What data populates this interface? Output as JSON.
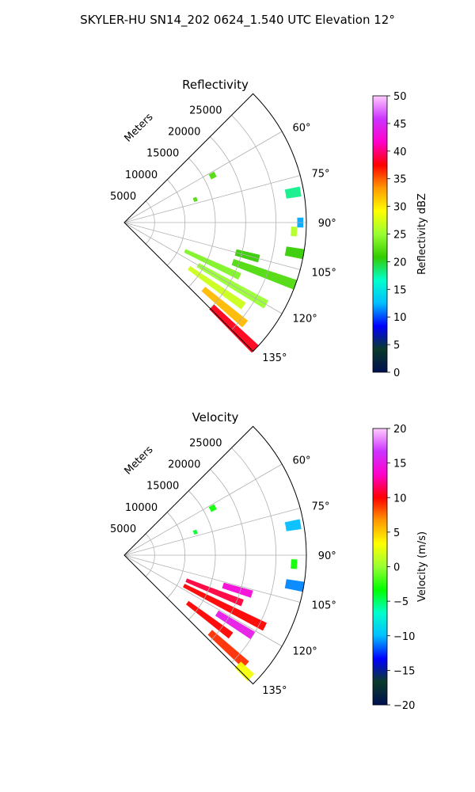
{
  "figure": {
    "title": "SKYLER-HU  SN14_202  0624_1.540 UTC Elevation 12°"
  },
  "chart_data": [
    {
      "type": "polar-sector",
      "title": "Reflectivity",
      "radial_label": "Meters",
      "r_ticks": [
        "5000",
        "10000",
        "15000",
        "20000",
        "25000"
      ],
      "theta_ticks": [
        "60°",
        "75°",
        "90°",
        "105°",
        "120°",
        "135°"
      ],
      "theta_range_deg": [
        45,
        135
      ],
      "r_range_m": [
        0,
        30000
      ],
      "grid": true,
      "colorbar": {
        "label": "Reflectivity dBZ",
        "min": 0,
        "max": 50,
        "ticks": [
          "0",
          "5",
          "10",
          "15",
          "20",
          "25",
          "30",
          "35",
          "40",
          "45",
          "50"
        ],
        "stops": [
          "#001050",
          "#0a3a2a",
          "#0000ff",
          "#00bfff",
          "#00ffcc",
          "#33cc00",
          "#99ff33",
          "#ffff00",
          "#ff9900",
          "#ff0000",
          "#ff00cc",
          "#cc33ff",
          "#ffccff"
        ]
      },
      "echoes": [
        {
          "az": 62,
          "r0": 16000,
          "r1": 17000,
          "value": 22
        },
        {
          "az": 72,
          "r0": 12000,
          "r1": 12600,
          "value": 22
        },
        {
          "az": 80,
          "r0": 27000,
          "r1": 29500,
          "value": 18
        },
        {
          "az": 90,
          "r0": 28500,
          "r1": 29500,
          "value": 12
        },
        {
          "az": 93,
          "r0": 27500,
          "r1": 28500,
          "value": 26
        },
        {
          "az": 100,
          "r0": 27000,
          "r1": 30000,
          "value": 21
        },
        {
          "az": 105,
          "r0": 19000,
          "r1": 23000,
          "value": 21
        },
        {
          "az": 110,
          "r0": 19000,
          "r1": 30000,
          "value": 22
        },
        {
          "az": 115,
          "r0": 11000,
          "r1": 21000,
          "value": 24
        },
        {
          "az": 120,
          "r0": 14000,
          "r1": 27000,
          "value": 25
        },
        {
          "az": 125,
          "r0": 13000,
          "r1": 24000,
          "value": 27
        },
        {
          "az": 130,
          "r0": 17000,
          "r1": 26000,
          "value": 32
        },
        {
          "az": 134,
          "r0": 20000,
          "r1": 30000,
          "value": 38
        }
      ]
    },
    {
      "type": "polar-sector",
      "title": "Velocity",
      "radial_label": "Meters",
      "r_ticks": [
        "5000",
        "10000",
        "15000",
        "20000",
        "25000"
      ],
      "theta_ticks": [
        "60°",
        "75°",
        "90°",
        "105°",
        "120°",
        "135°"
      ],
      "theta_range_deg": [
        45,
        135
      ],
      "r_range_m": [
        0,
        30000
      ],
      "grid": true,
      "colorbar": {
        "label": "Velocity (m/s)",
        "min": -20,
        "max": 20,
        "ticks": [
          "−20",
          "−15",
          "−10",
          "−5",
          "0",
          "5",
          "10",
          "15",
          "20"
        ],
        "stops": [
          "#001050",
          "#0a3a2a",
          "#0000ff",
          "#00bfff",
          "#00ffcc",
          "#00ff00",
          "#99ff33",
          "#ffff00",
          "#ff9900",
          "#ff0000",
          "#ff00cc",
          "#cc33ff",
          "#ffccff"
        ]
      },
      "echoes": [
        {
          "az": 62,
          "r0": 16000,
          "r1": 17000,
          "value": -3
        },
        {
          "az": 72,
          "r0": 12000,
          "r1": 12600,
          "value": -4
        },
        {
          "az": 80,
          "r0": 27000,
          "r1": 29500,
          "value": -10
        },
        {
          "az": 93,
          "r0": 27500,
          "r1": 28500,
          "value": -3
        },
        {
          "az": 100,
          "r0": 27000,
          "r1": 30000,
          "value": -11
        },
        {
          "az": 107,
          "r0": 17000,
          "r1": 22000,
          "value": 14
        },
        {
          "az": 112,
          "r0": 11000,
          "r1": 21000,
          "value": 11
        },
        {
          "az": 117,
          "r0": 11000,
          "r1": 26000,
          "value": 10
        },
        {
          "az": 122,
          "r0": 18000,
          "r1": 25000,
          "value": 15
        },
        {
          "az": 127,
          "r0": 13000,
          "r1": 22000,
          "value": 10
        },
        {
          "az": 132,
          "r0": 19000,
          "r1": 27000,
          "value": 9
        },
        {
          "az": 134,
          "r0": 26000,
          "r1": 29000,
          "value": 3
        }
      ]
    }
  ]
}
